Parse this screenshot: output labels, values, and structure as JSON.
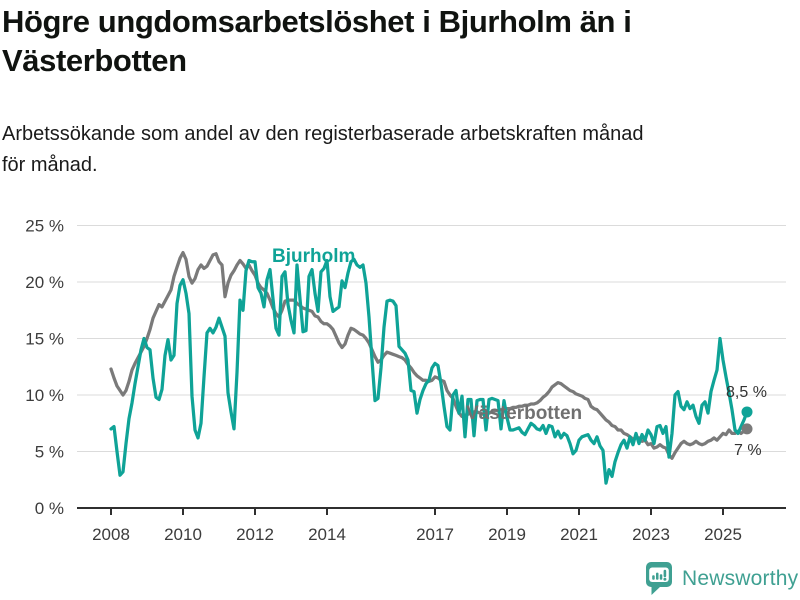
{
  "chart_data": {
    "type": "line",
    "title": "Högre ungdomsarbetslöshet i Bjurholm än i\nVästerbotten",
    "subtitle": "Arbetssökande som andel av den registerbaserade arbetskraften månad\nför månad.",
    "unit": "%",
    "x_start": "2008-01",
    "x_interval": "month",
    "x_tick_years": [
      2008,
      2010,
      2012,
      2014,
      2017,
      2019,
      2021,
      2023,
      2025
    ],
    "y_ticks": [
      0,
      5,
      10,
      15,
      20,
      25
    ],
    "y_tick_suffix": " %",
    "ylim": [
      0,
      25
    ],
    "grid": "horizontal",
    "legend_position": "inline-labels",
    "series": [
      {
        "name": "Bjurholm",
        "color": "#0fa397",
        "end_label": "8,5 %",
        "end_value": 8.5,
        "values": [
          7,
          7.2,
          5,
          2.9,
          3.2,
          5.7,
          7.9,
          9.3,
          11,
          12.5,
          14,
          15,
          14.2,
          14,
          11.5,
          9.8,
          9.6,
          10.5,
          13.5,
          14.9,
          13.1,
          13.5,
          18.1,
          19.7,
          20.2,
          19,
          17.2,
          9.9,
          6.9,
          6.2,
          7.5,
          11.6,
          15.5,
          15.9,
          15.5,
          16,
          16.8,
          16,
          15.2,
          10.2,
          8.5,
          7,
          12,
          18.4,
          17.5,
          21,
          21.9,
          21.8,
          21.8,
          19.5,
          19,
          17.8,
          20.2,
          21.1,
          18.5,
          15.9,
          15.3,
          20.5,
          20.9,
          18,
          16.6,
          15.5,
          21.5,
          18.5,
          15.6,
          15.7,
          20.5,
          21.1,
          19,
          17.4,
          20.9,
          21.2,
          21.9,
          18.7,
          17.4,
          17.6,
          17.8,
          20.1,
          19.5,
          20.8,
          21.8,
          22,
          21.5,
          21.3,
          21.5,
          19.9,
          16.9,
          13.1,
          9.5,
          9.7,
          12.4,
          16,
          18.3,
          18.4,
          18.3,
          17.9,
          14.3,
          14,
          13.7,
          13.1,
          10.4,
          10.3,
          8.4,
          9.6,
          10.4,
          11,
          11.3,
          12.4,
          12.8,
          12.6,
          11,
          9,
          7.2,
          6.9,
          10,
          10.4,
          8.4,
          9.9,
          6.3,
          9.6,
          9.6,
          6.4,
          9.5,
          9.6,
          9.6,
          6.9,
          9.6,
          9.7,
          9.6,
          9.5,
          7,
          9.5,
          8,
          6.9,
          6.9,
          7,
          7.1,
          6.7,
          6.5,
          7,
          7.5,
          7.3,
          7,
          6.9,
          7.3,
          6.6,
          7.3,
          7.2,
          6.3,
          6.8,
          6.2,
          6.6,
          6.4,
          5.7,
          4.8,
          5.1,
          6,
          6.3,
          6.4,
          6.5,
          6,
          5.7,
          6.3,
          5.5,
          5.1,
          2.2,
          3.4,
          2.8,
          4.1,
          4.9,
          5.6,
          6,
          5.3,
          6.3,
          5.6,
          6.6,
          5.7,
          6.5,
          6,
          6.9,
          6.5,
          5.7,
          7.2,
          7.3,
          6.6,
          7.2,
          4.5,
          6.6,
          10,
          10.3,
          9,
          8.7,
          9.4,
          8.8,
          9.1,
          8.1,
          7.5,
          9.1,
          9.4,
          8.4,
          10.3,
          11.3,
          12.2,
          15,
          13.1,
          11.6,
          10.2,
          8.7,
          6.9,
          6.6,
          7.2,
          7.8,
          8.5
        ]
      },
      {
        "name": "Västerbotten",
        "color": "#7a7a7a",
        "end_label": "7 %",
        "end_value": 7,
        "values": [
          12.3,
          11.5,
          10.8,
          10.4,
          10,
          10.4,
          11.2,
          12.2,
          12.8,
          13.3,
          13.8,
          14.3,
          15,
          15.8,
          16.8,
          17.4,
          18,
          17.8,
          18.3,
          18.8,
          19.3,
          20.5,
          21.3,
          22.1,
          22.6,
          22,
          20.5,
          19.9,
          20.3,
          21.1,
          21.5,
          21.2,
          21.4,
          21.9,
          22.4,
          22.5,
          21.8,
          21.5,
          18.7,
          19.9,
          20.6,
          21,
          21.5,
          21.9,
          21.6,
          21.2,
          21.5,
          21,
          20.6,
          19.9,
          19.5,
          19.3,
          19,
          18.4,
          17.7,
          17.2,
          16.9,
          17.5,
          18.3,
          18.4,
          18.4,
          18.4,
          18.1,
          17.9,
          17.7,
          17.6,
          17.5,
          17.4,
          17,
          16.9,
          16.5,
          16.3,
          16.3,
          16.1,
          15.8,
          15.2,
          14.6,
          14.2,
          14.5,
          15.3,
          15.9,
          15.8,
          15.6,
          15.4,
          15.3,
          15,
          14.6,
          14,
          13.4,
          12.9,
          13.1,
          13.5,
          13.8,
          13.7,
          13.6,
          13.5,
          13.4,
          13.3,
          13.1,
          12.7,
          12.4,
          12,
          11.7,
          11.5,
          11.3,
          11.3,
          11.2,
          11.3,
          11.6,
          11.5,
          11.3,
          11.2,
          10.4,
          10,
          9.7,
          9,
          8.4,
          8.1,
          8.2,
          8.3,
          8.4,
          8.5,
          8.5,
          8.4,
          8.3,
          8.3,
          8.4,
          8.5,
          8.6,
          8.6,
          8.7,
          8.7,
          8.8,
          8.8,
          8.9,
          8.9,
          9,
          9,
          9.1,
          9.1,
          9.2,
          9.2,
          9.3,
          9.5,
          9.8,
          10,
          10.3,
          10.7,
          10.9,
          11.1,
          11,
          10.8,
          10.6,
          10.4,
          10.3,
          10.1,
          10,
          9.9,
          9.7,
          9.6,
          9,
          8.8,
          8.7,
          8.4,
          8.1,
          7.8,
          7.6,
          7.3,
          7.2,
          6.9,
          6.9,
          6.6,
          6.5,
          6.3,
          6.1,
          6.2,
          6.2,
          5.9,
          6,
          5.6,
          5.7,
          5.3,
          5.4,
          5.6,
          5.4,
          5.3,
          4.7,
          4.4,
          4.9,
          5.3,
          5.7,
          5.9,
          5.7,
          5.6,
          5.7,
          5.9,
          5.7,
          5.6,
          5.7,
          5.9,
          6,
          6.2,
          6,
          6.3,
          6.6,
          6.5,
          6.9,
          6.6,
          6.6,
          6.8,
          6.6,
          6.8,
          7
        ]
      }
    ],
    "label_colors": {
      "bjurholm_label": "#0fa397",
      "vasterbotten_label": "#707070",
      "end_labels": "#333333"
    }
  },
  "footer": {
    "brand": "Newsworthy",
    "brand_color": "#3fa092"
  }
}
